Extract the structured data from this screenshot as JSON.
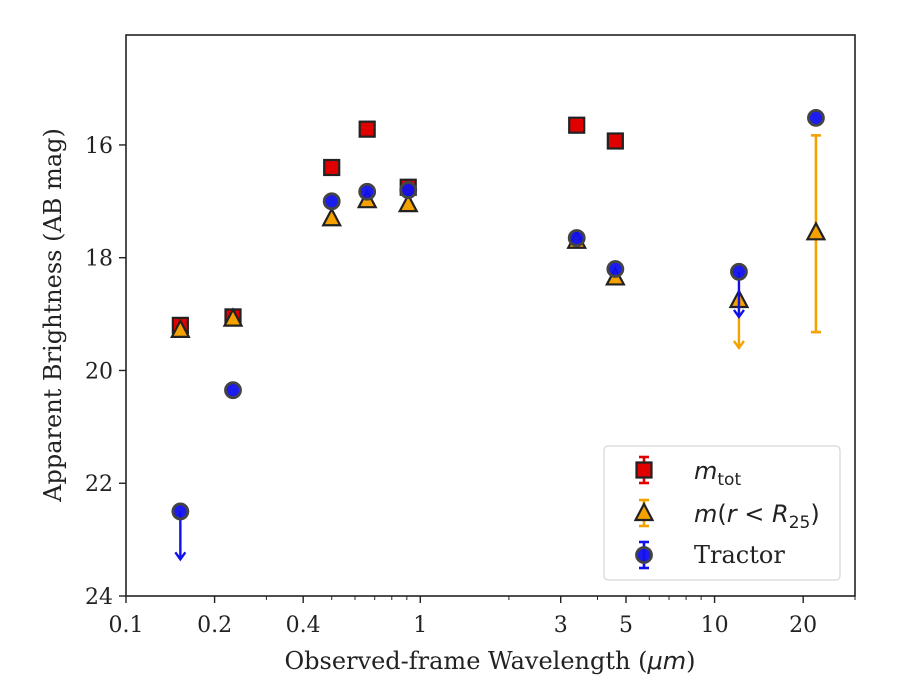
{
  "chart_data": {
    "type": "scatter",
    "xscale": "log",
    "yaxis_inverted": true,
    "xlabel_prefix": "Observed-frame Wavelength (",
    "xlabel_unit": "μm",
    "xlabel_suffix": ")",
    "ylabel": "Apparent Brightness (AB mag)",
    "xlim": [
      0.1,
      30
    ],
    "ylim": [
      24,
      14.05
    ],
    "xticks": [
      0.1,
      0.2,
      0.4,
      1,
      3,
      5,
      10,
      20
    ],
    "xtick_labels": [
      "0.1",
      "0.2",
      "0.4",
      "1",
      "3",
      "5",
      "10",
      "20"
    ],
    "yticks": [
      16,
      18,
      20,
      22,
      24
    ],
    "ytick_labels": [
      "16",
      "18",
      "20",
      "22",
      "24"
    ],
    "grid": false,
    "legend_position": "lower-right",
    "series": [
      {
        "key": "m_tot",
        "legend_base": "m",
        "legend_sub": "tot",
        "marker": "square",
        "color": "#e00000",
        "edge_color": "#222222",
        "points": [
          {
            "x": 0.153,
            "y": 19.2
          },
          {
            "x": 0.231,
            "y": 19.05
          },
          {
            "x": 0.5,
            "y": 16.4
          },
          {
            "x": 0.66,
            "y": 15.72
          },
          {
            "x": 0.91,
            "y": 16.75
          },
          {
            "x": 3.4,
            "y": 15.65
          },
          {
            "x": 4.6,
            "y": 15.93
          }
        ]
      },
      {
        "key": "m_r25",
        "legend_base": "m",
        "legend_open": "(",
        "legend_var": "r",
        "legend_lt": " < ",
        "legend_var2": "R",
        "legend_sub": "25",
        "legend_close": ")",
        "marker": "triangle",
        "color": "#f5a100",
        "edge_color": "#222222",
        "points": [
          {
            "x": 0.153,
            "y": 19.28
          },
          {
            "x": 0.231,
            "y": 19.08
          },
          {
            "x": 0.5,
            "y": 17.3
          },
          {
            "x": 0.66,
            "y": 16.98
          },
          {
            "x": 0.91,
            "y": 17.05
          },
          {
            "x": 3.4,
            "y": 17.7
          },
          {
            "x": 4.6,
            "y": 18.35
          },
          {
            "x": 12.1,
            "y": 18.75,
            "upper_limit": true,
            "arrow_to": 19.6
          },
          {
            "x": 22.1,
            "y": 17.55,
            "yerr_low": 15.83,
            "yerr_high": 19.32
          }
        ]
      },
      {
        "key": "tractor",
        "name": "Tractor",
        "marker": "circle",
        "color": "#1010ee",
        "edge_color": "#444444",
        "points": [
          {
            "x": 0.153,
            "y": 22.5,
            "upper_limit": true,
            "arrow_to": 23.35
          },
          {
            "x": 0.231,
            "y": 20.35
          },
          {
            "x": 0.5,
            "y": 17.0
          },
          {
            "x": 0.66,
            "y": 16.83
          },
          {
            "x": 0.91,
            "y": 16.8
          },
          {
            "x": 3.4,
            "y": 17.65
          },
          {
            "x": 4.6,
            "y": 18.2
          },
          {
            "x": 12.1,
            "y": 18.25,
            "upper_limit": true,
            "arrow_to": 19.05
          },
          {
            "x": 22.1,
            "y": 15.52
          }
        ]
      }
    ]
  }
}
